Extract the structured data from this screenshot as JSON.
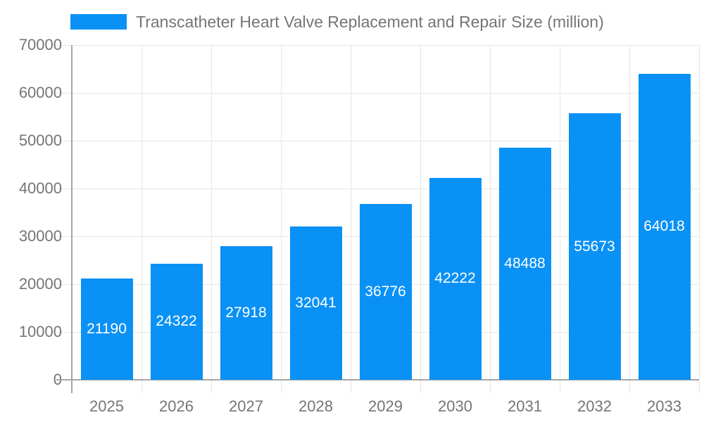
{
  "legend": {
    "label": "Transcatheter Heart Valve Replacement and Repair Size (million)",
    "swatch_color": "#0a91f5"
  },
  "chart_data": {
    "type": "bar",
    "title": "Transcatheter Heart Valve Replacement and Repair Size (million)",
    "categories": [
      "2025",
      "2026",
      "2027",
      "2028",
      "2029",
      "2030",
      "2031",
      "2032",
      "2033"
    ],
    "values": [
      21190,
      24322,
      27918,
      32041,
      36776,
      42222,
      48488,
      55673,
      64018
    ],
    "value_labels": [
      "21190",
      "24322",
      "27918",
      "32041",
      "36776",
      "42222",
      "48488",
      "55673",
      "64018"
    ],
    "xlabel": "",
    "ylabel": "",
    "ylim": [
      0,
      70000
    ],
    "ytick_interval": 10000,
    "ytick_labels": [
      "0",
      "10000",
      "20000",
      "30000",
      "40000",
      "50000",
      "60000",
      "70000"
    ],
    "grid": true,
    "legend_position": "top",
    "colors": {
      "bar": "#0a91f5",
      "value_label": "#ffffff",
      "axis_text": "#757575",
      "axis_line": "#a6a6a6",
      "gridline": "#e6e6e6"
    }
  }
}
